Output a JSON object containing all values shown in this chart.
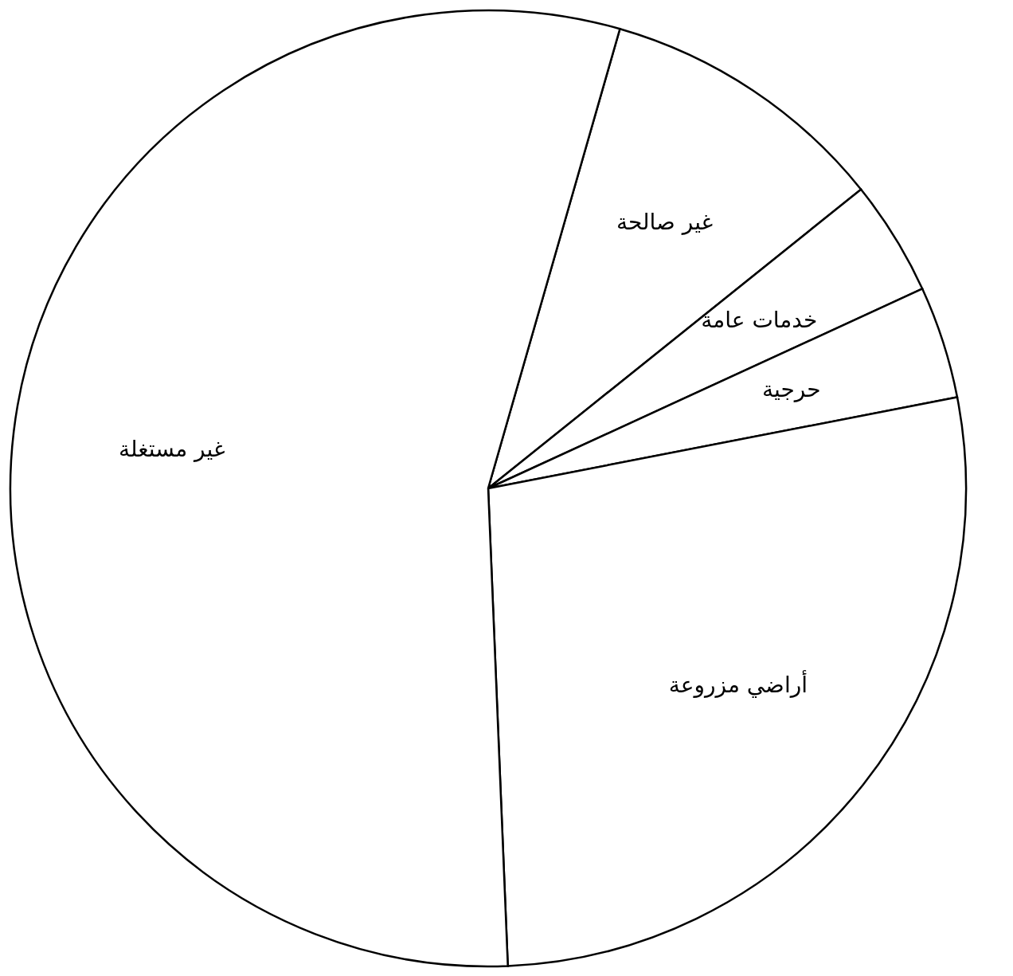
{
  "chart_data": {
    "type": "pie",
    "categories": [
      "غير صالحة",
      "خدمات عامة",
      "حرجية",
      "أراضي مزروعة",
      "غير مستغلة"
    ],
    "values": [
      9.8,
      3.9,
      3.8,
      27.4,
      55.1
    ],
    "colors": [
      "#ffffff",
      "#ffffff",
      "#ffffff",
      "#ffffff",
      "#ffffff"
    ]
  }
}
